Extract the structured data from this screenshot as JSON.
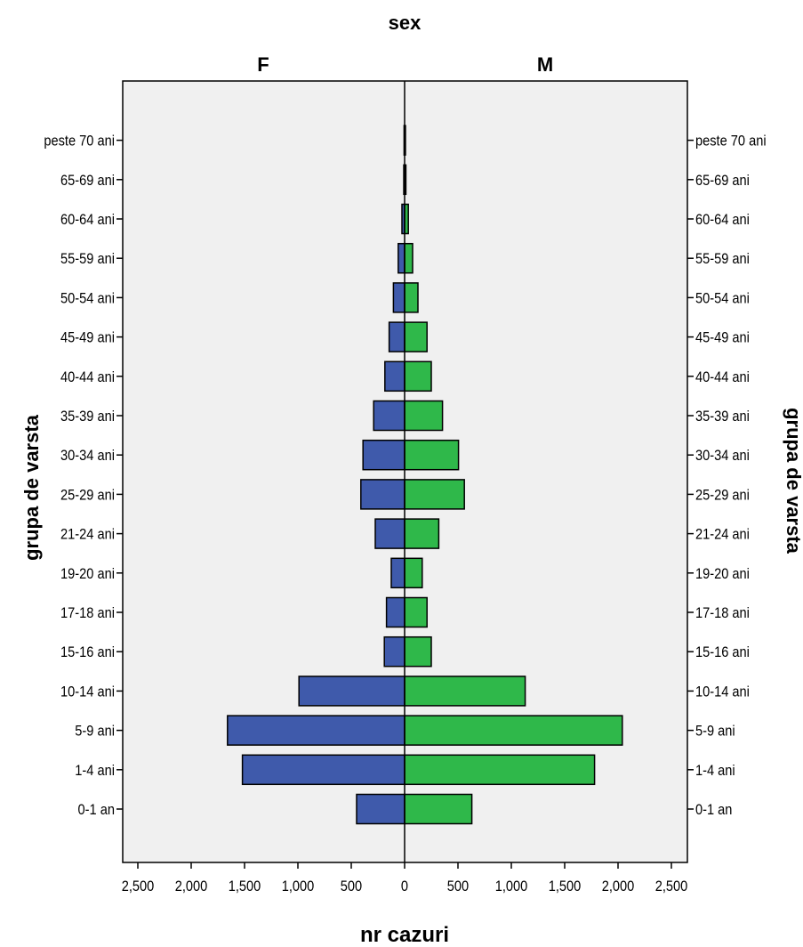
{
  "chart_data": {
    "type": "bar",
    "orientation": "horizontal-pyramid",
    "panel_title": "sex",
    "panels": [
      "F",
      "M"
    ],
    "xlabel": "nr cazuri",
    "ylabel": "grupa de varsta",
    "categories": [
      "0-1 an",
      "1-4 ani",
      "5-9 ani",
      "10-14 ani",
      "15-16 ani",
      "17-18 ani",
      "19-20 ani",
      "21-24 ani",
      "25-29 ani",
      "30-34 ani",
      "35-39 ani",
      "40-44 ani",
      "45-49 ani",
      "50-54 ani",
      "55-59 ani",
      "60-64 ani",
      "65-69 ani",
      "peste 70 ani"
    ],
    "series": [
      {
        "name": "F",
        "values": [
          450,
          1520,
          1660,
          990,
          190,
          170,
          125,
          275,
          410,
          390,
          290,
          185,
          145,
          105,
          60,
          25,
          8,
          5
        ]
      },
      {
        "name": "M",
        "values": [
          630,
          1780,
          2040,
          1130,
          250,
          210,
          165,
          320,
          560,
          505,
          355,
          250,
          210,
          125,
          75,
          35,
          12,
          8
        ]
      }
    ],
    "xticks": [
      "2,500",
      "2,000",
      "1,500",
      "1,000",
      "500",
      "0",
      "500",
      "1,000",
      "1,500",
      "2,000",
      "2,500"
    ],
    "xlim": [
      -2600,
      2600
    ],
    "colors": {
      "F": "#3f5aab",
      "M": "#2fb84a",
      "plot_bg": "#f0f0f0"
    },
    "grid": false,
    "legend": "none"
  }
}
